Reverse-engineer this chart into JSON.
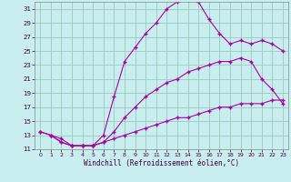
{
  "xlabel": "Windchill (Refroidissement éolien,°C)",
  "background_color": "#c8eef0",
  "grid_color": "#99ccbb",
  "line_color": "#aa00aa",
  "xlim": [
    -0.5,
    23.5
  ],
  "ylim": [
    11,
    32
  ],
  "yticks": [
    11,
    13,
    15,
    17,
    19,
    21,
    23,
    25,
    27,
    29,
    31
  ],
  "xticks": [
    0,
    1,
    2,
    3,
    4,
    5,
    6,
    7,
    8,
    9,
    10,
    11,
    12,
    13,
    14,
    15,
    16,
    17,
    18,
    19,
    20,
    21,
    22,
    23
  ],
  "line1_x": [
    1,
    2,
    3,
    4,
    5,
    6,
    7,
    8,
    9,
    10,
    11,
    12,
    13,
    14,
    15,
    16,
    17,
    18,
    19,
    20,
    21,
    22,
    23
  ],
  "line1_y": [
    13,
    12.5,
    11.5,
    11.5,
    11.5,
    13,
    18.5,
    23.5,
    25.5,
    27.5,
    29,
    31,
    32,
    32.2,
    32,
    29.5,
    27.5,
    26,
    26.5,
    26,
    26.5,
    26,
    25
  ],
  "line2_x": [
    0,
    1,
    2,
    3,
    4,
    5,
    6,
    7,
    8,
    9,
    10,
    11,
    12,
    13,
    14,
    15,
    16,
    17,
    18,
    19,
    20,
    21,
    22,
    23
  ],
  "line2_y": [
    13.5,
    13,
    12,
    11.5,
    11.5,
    11.5,
    12,
    13.5,
    15.5,
    17,
    18.5,
    19.5,
    20.5,
    21,
    22,
    22.5,
    23,
    23.5,
    23.5,
    24,
    23.5,
    21,
    19.5,
    17.5
  ],
  "line3_x": [
    0,
    1,
    2,
    3,
    4,
    5,
    6,
    7,
    8,
    9,
    10,
    11,
    12,
    13,
    14,
    15,
    16,
    17,
    18,
    19,
    20,
    21,
    22,
    23
  ],
  "line3_y": [
    13.5,
    13,
    12,
    11.5,
    11.5,
    11.5,
    12,
    12.5,
    13,
    13.5,
    14,
    14.5,
    15,
    15.5,
    15.5,
    16,
    16.5,
    17,
    17,
    17.5,
    17.5,
    17.5,
    18,
    18
  ]
}
